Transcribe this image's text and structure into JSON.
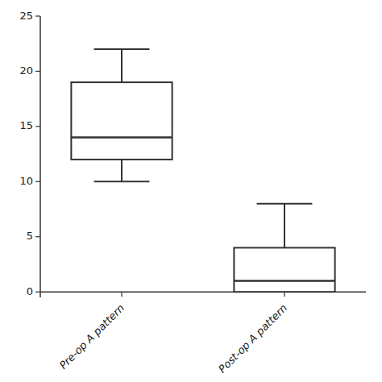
{
  "chart_data": {
    "type": "box",
    "categories": [
      "Pre-op A pattern",
      "Post-op A pattern"
    ],
    "boxes": [
      {
        "q1": 12,
        "median": 14,
        "q3": 19,
        "whislo": 10,
        "whishi": 22
      },
      {
        "q1": 0,
        "median": 1,
        "q3": 4,
        "whislo": 0,
        "whishi": 8
      }
    ],
    "ylim": [
      -0.5,
      25
    ],
    "yticks": [
      0,
      5,
      10,
      15,
      20,
      25
    ]
  }
}
